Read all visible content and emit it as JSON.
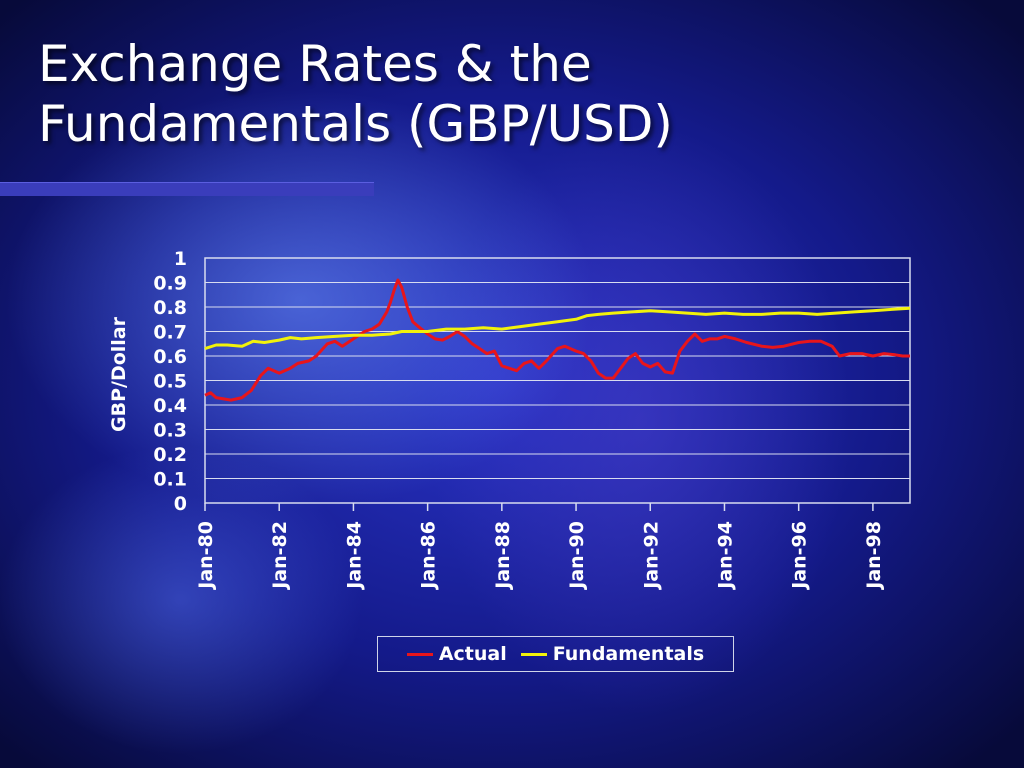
{
  "slide": {
    "title": "Exchange Rates & the Fundamentals (GBP/USD)"
  },
  "chart_data": {
    "type": "line",
    "title": "",
    "xlabel": "",
    "ylabel": "GBP/Dollar",
    "ylim": [
      0,
      1
    ],
    "yticks": [
      "0",
      "0.1",
      "0.2",
      "0.3",
      "0.4",
      "0.5",
      "0.6",
      "0.7",
      "0.8",
      "0.9",
      "1"
    ],
    "xlim": [
      1980.0,
      1999.0
    ],
    "xticks": [
      {
        "label": "Jan-80",
        "x": 1980
      },
      {
        "label": "Jan-82",
        "x": 1982
      },
      {
        "label": "Jan-84",
        "x": 1984
      },
      {
        "label": "Jan-86",
        "x": 1986
      },
      {
        "label": "Jan-88",
        "x": 1988
      },
      {
        "label": "Jan-90",
        "x": 1990
      },
      {
        "label": "Jan-92",
        "x": 1992
      },
      {
        "label": "Jan-94",
        "x": 1994
      },
      {
        "label": "Jan-96",
        "x": 1996
      },
      {
        "label": "Jan-98",
        "x": 1998
      }
    ],
    "grid": true,
    "legend_position": "bottom",
    "series": [
      {
        "name": "Actual",
        "color": "#e8151b",
        "points": [
          [
            1980.0,
            0.44
          ],
          [
            1980.15,
            0.45
          ],
          [
            1980.3,
            0.43
          ],
          [
            1980.5,
            0.425
          ],
          [
            1980.7,
            0.42
          ],
          [
            1981.0,
            0.43
          ],
          [
            1981.25,
            0.46
          ],
          [
            1981.5,
            0.52
          ],
          [
            1981.7,
            0.55
          ],
          [
            1982.0,
            0.53
          ],
          [
            1982.3,
            0.55
          ],
          [
            1982.5,
            0.57
          ],
          [
            1982.8,
            0.58
          ],
          [
            1983.0,
            0.6
          ],
          [
            1983.3,
            0.65
          ],
          [
            1983.5,
            0.66
          ],
          [
            1983.7,
            0.64
          ],
          [
            1984.0,
            0.67
          ],
          [
            1984.3,
            0.7
          ],
          [
            1984.5,
            0.71
          ],
          [
            1984.7,
            0.73
          ],
          [
            1984.9,
            0.78
          ],
          [
            1985.0,
            0.82
          ],
          [
            1985.1,
            0.87
          ],
          [
            1985.2,
            0.91
          ],
          [
            1985.3,
            0.88
          ],
          [
            1985.45,
            0.8
          ],
          [
            1985.6,
            0.74
          ],
          [
            1985.75,
            0.72
          ],
          [
            1986.0,
            0.69
          ],
          [
            1986.2,
            0.67
          ],
          [
            1986.4,
            0.665
          ],
          [
            1986.6,
            0.68
          ],
          [
            1986.8,
            0.7
          ],
          [
            1987.0,
            0.68
          ],
          [
            1987.2,
            0.65
          ],
          [
            1987.4,
            0.63
          ],
          [
            1987.6,
            0.61
          ],
          [
            1987.8,
            0.62
          ],
          [
            1988.0,
            0.56
          ],
          [
            1988.2,
            0.55
          ],
          [
            1988.4,
            0.54
          ],
          [
            1988.6,
            0.57
          ],
          [
            1988.8,
            0.58
          ],
          [
            1989.0,
            0.55
          ],
          [
            1989.2,
            0.58
          ],
          [
            1989.5,
            0.63
          ],
          [
            1989.7,
            0.64
          ],
          [
            1990.0,
            0.62
          ],
          [
            1990.2,
            0.61
          ],
          [
            1990.4,
            0.58
          ],
          [
            1990.6,
            0.53
          ],
          [
            1990.8,
            0.51
          ],
          [
            1991.0,
            0.51
          ],
          [
            1991.2,
            0.55
          ],
          [
            1991.4,
            0.59
          ],
          [
            1991.6,
            0.61
          ],
          [
            1991.8,
            0.57
          ],
          [
            1992.0,
            0.555
          ],
          [
            1992.2,
            0.57
          ],
          [
            1992.4,
            0.535
          ],
          [
            1992.6,
            0.53
          ],
          [
            1992.8,
            0.62
          ],
          [
            1993.0,
            0.66
          ],
          [
            1993.2,
            0.69
          ],
          [
            1993.4,
            0.66
          ],
          [
            1993.6,
            0.67
          ],
          [
            1993.8,
            0.67
          ],
          [
            1994.0,
            0.68
          ],
          [
            1994.3,
            0.67
          ],
          [
            1994.6,
            0.655
          ],
          [
            1995.0,
            0.64
          ],
          [
            1995.3,
            0.635
          ],
          [
            1995.6,
            0.64
          ],
          [
            1996.0,
            0.655
          ],
          [
            1996.3,
            0.66
          ],
          [
            1996.6,
            0.66
          ],
          [
            1996.9,
            0.64
          ],
          [
            1997.1,
            0.6
          ],
          [
            1997.4,
            0.61
          ],
          [
            1997.7,
            0.61
          ],
          [
            1998.0,
            0.6
          ],
          [
            1998.3,
            0.61
          ],
          [
            1998.6,
            0.605
          ],
          [
            1998.8,
            0.6
          ],
          [
            1999.0,
            0.6
          ]
        ]
      },
      {
        "name": "Fundamentals",
        "color": "#f2f20a",
        "points": [
          [
            1980.0,
            0.63
          ],
          [
            1980.3,
            0.645
          ],
          [
            1980.6,
            0.645
          ],
          [
            1981.0,
            0.64
          ],
          [
            1981.3,
            0.66
          ],
          [
            1981.6,
            0.655
          ],
          [
            1982.0,
            0.665
          ],
          [
            1982.3,
            0.675
          ],
          [
            1982.6,
            0.67
          ],
          [
            1983.0,
            0.675
          ],
          [
            1983.5,
            0.68
          ],
          [
            1984.0,
            0.685
          ],
          [
            1984.5,
            0.685
          ],
          [
            1985.0,
            0.69
          ],
          [
            1985.3,
            0.7
          ],
          [
            1985.6,
            0.7
          ],
          [
            1986.0,
            0.7
          ],
          [
            1986.5,
            0.71
          ],
          [
            1987.0,
            0.71
          ],
          [
            1987.5,
            0.715
          ],
          [
            1988.0,
            0.71
          ],
          [
            1988.5,
            0.72
          ],
          [
            1989.0,
            0.73
          ],
          [
            1989.5,
            0.74
          ],
          [
            1990.0,
            0.75
          ],
          [
            1990.3,
            0.765
          ],
          [
            1990.6,
            0.77
          ],
          [
            1991.0,
            0.775
          ],
          [
            1991.5,
            0.78
          ],
          [
            1992.0,
            0.785
          ],
          [
            1992.5,
            0.78
          ],
          [
            1993.0,
            0.775
          ],
          [
            1993.5,
            0.77
          ],
          [
            1994.0,
            0.775
          ],
          [
            1994.5,
            0.77
          ],
          [
            1995.0,
            0.77
          ],
          [
            1995.5,
            0.775
          ],
          [
            1996.0,
            0.775
          ],
          [
            1996.5,
            0.77
          ],
          [
            1997.0,
            0.775
          ],
          [
            1997.5,
            0.78
          ],
          [
            1998.0,
            0.785
          ],
          [
            1998.5,
            0.79
          ],
          [
            1999.0,
            0.795
          ]
        ]
      }
    ]
  }
}
